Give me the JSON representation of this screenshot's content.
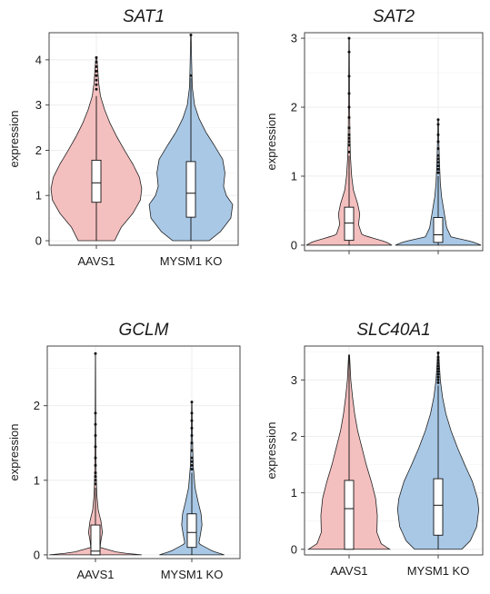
{
  "chart_data": [
    {
      "type": "violin",
      "title": "SAT1",
      "ylabel": "expression",
      "xlabel": "",
      "categories": [
        "AAVS1",
        "MYSM1 KO"
      ],
      "ylim": [
        -0.1,
        4.6
      ],
      "yticks": [
        0,
        1,
        2,
        3,
        4
      ],
      "x_ticks_shown": true,
      "grid": true,
      "colors": [
        "#f4bfbf",
        "#a9c8e6"
      ],
      "groups": [
        {
          "name": "AAVS1",
          "min": 0.0,
          "max": 4.05,
          "q1": 0.85,
          "median": 1.28,
          "q3": 1.78,
          "whisker_high": 3.2,
          "outliers": [
            3.35,
            3.45,
            3.55,
            3.65,
            3.75,
            3.85,
            3.95,
            4.05
          ],
          "density": [
            [
              0.0,
              0.4
            ],
            [
              0.3,
              0.55
            ],
            [
              0.6,
              0.8
            ],
            [
              0.9,
              0.97
            ],
            [
              1.15,
              1.0
            ],
            [
              1.4,
              0.95
            ],
            [
              1.7,
              0.8
            ],
            [
              2.0,
              0.62
            ],
            [
              2.3,
              0.45
            ],
            [
              2.6,
              0.3
            ],
            [
              2.9,
              0.18
            ],
            [
              3.2,
              0.09
            ],
            [
              3.5,
              0.05
            ],
            [
              3.8,
              0.03
            ],
            [
              4.05,
              0.01
            ]
          ]
        },
        {
          "name": "MYSM1 KO",
          "min": 0.0,
          "max": 4.55,
          "q1": 0.52,
          "median": 1.05,
          "q3": 1.75,
          "whisker_high": 3.6,
          "outliers": [
            3.65,
            4.55
          ],
          "density": [
            [
              0.0,
              0.4
            ],
            [
              0.2,
              0.65
            ],
            [
              0.5,
              0.88
            ],
            [
              0.8,
              0.92
            ],
            [
              1.0,
              0.78
            ],
            [
              1.2,
              0.72
            ],
            [
              1.5,
              0.75
            ],
            [
              1.8,
              0.7
            ],
            [
              2.1,
              0.52
            ],
            [
              2.4,
              0.33
            ],
            [
              2.7,
              0.18
            ],
            [
              3.0,
              0.08
            ],
            [
              3.4,
              0.03
            ],
            [
              4.0,
              0.015
            ],
            [
              4.55,
              0.005
            ]
          ]
        }
      ]
    },
    {
      "type": "violin",
      "title": "SAT2",
      "ylabel": "expression",
      "xlabel": "",
      "categories": [
        "",
        ""
      ],
      "ylim": [
        -0.08,
        3.08
      ],
      "yticks": [
        0,
        1,
        2,
        3
      ],
      "x_ticks_shown": false,
      "grid": true,
      "colors": [
        "#f4bfbf",
        "#a9c8e6"
      ],
      "groups": [
        {
          "name": "AAVS1",
          "min": 0.0,
          "max": 3.0,
          "q1": 0.07,
          "median": 0.32,
          "q3": 0.55,
          "whisker_high": 1.3,
          "outliers": [
            1.35,
            1.45,
            1.5,
            1.55,
            1.6,
            1.7,
            1.85,
            2.0,
            2.2,
            2.45,
            2.8,
            3.0
          ],
          "density": [
            [
              0.0,
              1.0
            ],
            [
              0.05,
              0.85
            ],
            [
              0.15,
              0.3
            ],
            [
              0.3,
              0.22
            ],
            [
              0.45,
              0.25
            ],
            [
              0.6,
              0.2
            ],
            [
              0.8,
              0.1
            ],
            [
              1.0,
              0.06
            ],
            [
              1.3,
              0.03
            ],
            [
              1.6,
              0.02
            ],
            [
              2.0,
              0.012
            ],
            [
              2.5,
              0.008
            ],
            [
              3.0,
              0.005
            ]
          ]
        },
        {
          "name": "MYSM1 KO",
          "min": 0.0,
          "max": 1.82,
          "q1": 0.04,
          "median": 0.15,
          "q3": 0.4,
          "whisker_high": 1.0,
          "outliers": [
            1.05,
            1.1,
            1.15,
            1.2,
            1.25,
            1.3,
            1.4,
            1.5,
            1.6,
            1.75,
            1.82
          ],
          "density": [
            [
              0.0,
              1.0
            ],
            [
              0.05,
              0.8
            ],
            [
              0.12,
              0.3
            ],
            [
              0.25,
              0.2
            ],
            [
              0.4,
              0.16
            ],
            [
              0.55,
              0.12
            ],
            [
              0.7,
              0.08
            ],
            [
              0.9,
              0.05
            ],
            [
              1.2,
              0.03
            ],
            [
              1.5,
              0.015
            ],
            [
              1.82,
              0.005
            ]
          ]
        }
      ]
    },
    {
      "type": "violin",
      "title": "GCLM",
      "ylabel": "expression",
      "xlabel": "",
      "categories": [
        "AAVS1",
        "MYSM1 KO"
      ],
      "ylim": [
        -0.05,
        2.8
      ],
      "yticks": [
        0,
        1,
        2
      ],
      "x_ticks_shown": true,
      "grid": true,
      "colors": [
        "#f4bfbf",
        "#a9c8e6"
      ],
      "groups": [
        {
          "name": "AAVS1",
          "min": 0.0,
          "max": 2.7,
          "q1": 0.0,
          "median": 0.05,
          "q3": 0.4,
          "whisker_high": 0.9,
          "outliers": [
            0.95,
            1.0,
            1.05,
            1.1,
            1.2,
            1.3,
            1.45,
            1.6,
            1.75,
            1.9,
            2.7
          ],
          "density": [
            [
              0.0,
              1.0
            ],
            [
              0.03,
              0.5
            ],
            [
              0.1,
              0.1
            ],
            [
              0.2,
              0.12
            ],
            [
              0.3,
              0.15
            ],
            [
              0.45,
              0.12
            ],
            [
              0.6,
              0.06
            ],
            [
              0.8,
              0.03
            ],
            [
              1.1,
              0.015
            ],
            [
              1.5,
              0.008
            ],
            [
              2.0,
              0.005
            ],
            [
              2.7,
              0.002
            ]
          ]
        },
        {
          "name": "MYSM1 KO",
          "min": 0.0,
          "max": 2.05,
          "q1": 0.1,
          "median": 0.3,
          "q3": 0.55,
          "whisker_high": 1.1,
          "outliers": [
            1.15,
            1.2,
            1.25,
            1.3,
            1.4,
            1.5,
            1.6,
            1.7,
            1.8,
            1.9,
            2.05
          ],
          "density": [
            [
              0.0,
              0.7
            ],
            [
              0.05,
              0.45
            ],
            [
              0.15,
              0.15
            ],
            [
              0.25,
              0.18
            ],
            [
              0.4,
              0.22
            ],
            [
              0.55,
              0.2
            ],
            [
              0.7,
              0.14
            ],
            [
              0.9,
              0.07
            ],
            [
              1.2,
              0.03
            ],
            [
              1.6,
              0.012
            ],
            [
              2.05,
              0.004
            ]
          ]
        }
      ]
    },
    {
      "type": "violin",
      "title": "SLC40A1",
      "ylabel": "expression",
      "xlabel": "",
      "categories": [
        "AAVS1",
        "MYSM1 KO"
      ],
      "ylim": [
        -0.1,
        3.6
      ],
      "yticks": [
        0,
        1,
        2,
        3
      ],
      "x_ticks_shown": true,
      "grid": true,
      "colors": [
        "#f4bfbf",
        "#a9c8e6"
      ],
      "groups": [
        {
          "name": "AAVS1",
          "min": 0.0,
          "max": 3.45,
          "q1": 0.0,
          "median": 0.72,
          "q3": 1.22,
          "whisker_high": 3.45,
          "outliers": [],
          "density": [
            [
              0.0,
              0.95
            ],
            [
              0.1,
              0.75
            ],
            [
              0.3,
              0.65
            ],
            [
              0.6,
              0.66
            ],
            [
              0.9,
              0.62
            ],
            [
              1.2,
              0.52
            ],
            [
              1.5,
              0.4
            ],
            [
              1.8,
              0.3
            ],
            [
              2.1,
              0.2
            ],
            [
              2.4,
              0.13
            ],
            [
              2.7,
              0.08
            ],
            [
              3.0,
              0.04
            ],
            [
              3.45,
              0.01
            ]
          ]
        },
        {
          "name": "MYSM1 KO",
          "min": 0.0,
          "max": 3.48,
          "q1": 0.25,
          "median": 0.78,
          "q3": 1.25,
          "whisker_high": 2.9,
          "outliers": [
            2.95,
            3.0,
            3.05,
            3.1,
            3.15,
            3.2,
            3.25,
            3.3,
            3.35,
            3.4,
            3.48
          ],
          "density": [
            [
              0.0,
              0.55
            ],
            [
              0.15,
              0.75
            ],
            [
              0.4,
              0.9
            ],
            [
              0.7,
              0.95
            ],
            [
              0.9,
              0.92
            ],
            [
              1.2,
              0.8
            ],
            [
              1.5,
              0.62
            ],
            [
              1.8,
              0.45
            ],
            [
              2.1,
              0.3
            ],
            [
              2.4,
              0.18
            ],
            [
              2.7,
              0.1
            ],
            [
              3.0,
              0.05
            ],
            [
              3.48,
              0.01
            ]
          ]
        }
      ]
    }
  ]
}
